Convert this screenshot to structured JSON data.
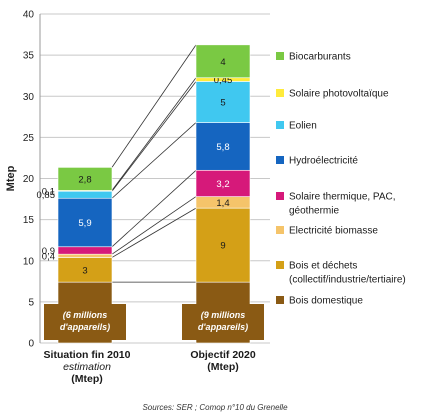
{
  "chart_data": {
    "type": "bar",
    "stacked": true,
    "ylabel": "Mtep",
    "ylim": [
      0,
      40
    ],
    "yticks": [
      0,
      5,
      10,
      15,
      20,
      25,
      30,
      35,
      40
    ],
    "grid": true,
    "legend_position": "right",
    "categories": [
      {
        "lines": [
          "Situation fin 2010",
          "estimation",
          "(Mtep)"
        ]
      },
      {
        "lines": [
          "Objectif 2020",
          "(Mtep)"
        ]
      }
    ],
    "series": [
      {
        "name": "Bois domestique",
        "color": "#8a5a14",
        "values": [
          7.4,
          7.4
        ],
        "labels": [
          "7,4",
          "7,4"
        ]
      },
      {
        "name": "Bois et déchets (collectif/industrie/tertiaire)",
        "name_lines": [
          "Bois et déchets",
          "(collectif/industrie/tertiaire)"
        ],
        "color": "#d4a017",
        "values": [
          3,
          9
        ],
        "labels": [
          "3",
          "9"
        ]
      },
      {
        "name": "Electricité biomasse",
        "color": "#f5c46a",
        "values": [
          0.4,
          1.4
        ],
        "labels": [
          "0,4",
          "1,4"
        ]
      },
      {
        "name": "Solaire thermique, PAC, géothermie",
        "name_lines": [
          "Solaire thermique, PAC,",
          "géothermie"
        ],
        "color": "#d6197a",
        "values": [
          0.9,
          3.2
        ],
        "labels": [
          "0,9",
          "3,2"
        ]
      },
      {
        "name": "Hydroélectricité",
        "color": "#1565c0",
        "values": [
          5.9,
          5.8
        ],
        "labels": [
          "5,9",
          "5,8"
        ]
      },
      {
        "name": "Eolien",
        "color": "#40c8f0",
        "values": [
          0.85,
          5
        ],
        "labels": [
          "0,85",
          "5"
        ]
      },
      {
        "name": "Solaire photovoltaïque",
        "color": "#ffeb3b",
        "values": [
          0.1,
          0.45
        ],
        "labels": [
          "0,1",
          "0,45"
        ]
      },
      {
        "name": "Biocarburants",
        "color": "#7ac943",
        "values": [
          2.8,
          4
        ],
        "labels": [
          "2,8",
          "4"
        ]
      }
    ],
    "annotations": [
      {
        "lines": [
          "(6 millions",
          "d'appareils)"
        ]
      },
      {
        "lines": [
          "(9 millions",
          "d'appareils)"
        ]
      }
    ],
    "source": "Sources: SER ; Comop n°10 du Grenelle"
  }
}
